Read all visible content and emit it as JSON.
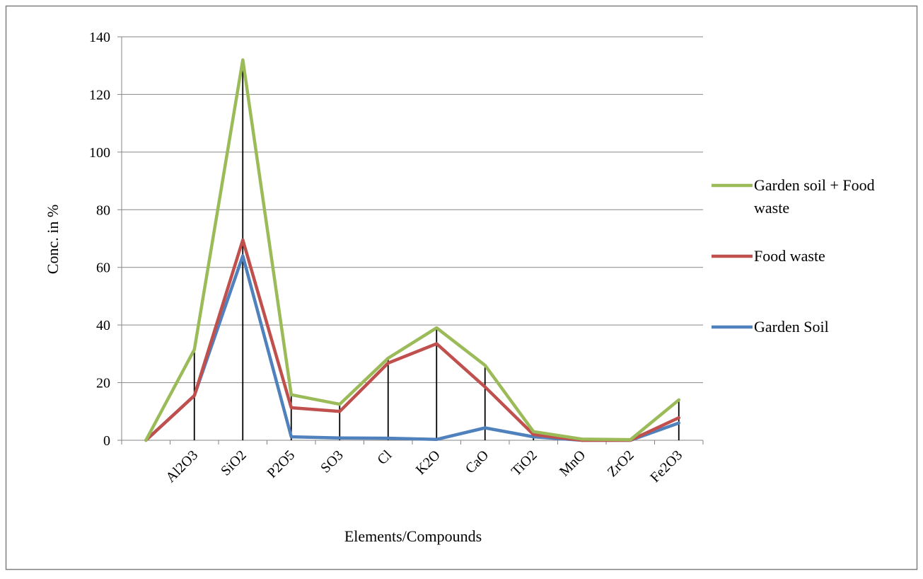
{
  "chart_data": {
    "type": "line",
    "categories": [
      "",
      "Al2O3",
      "SiO2",
      "P2O5",
      "SO3",
      "Cl",
      "K2O",
      "CaO",
      "TiO2",
      "MnO",
      "ZrO2",
      "Fe2O3"
    ],
    "series": [
      {
        "name": "Garden soil + Food waste",
        "values": [
          0,
          31.5,
          132,
          15.8,
          12.5,
          28.5,
          39,
          26,
          3,
          0.4,
          0.2,
          14
        ],
        "color": "#9bbb59"
      },
      {
        "name": "Food waste",
        "values": [
          0,
          15.5,
          69.5,
          11.3,
          10,
          26.8,
          33.5,
          18.5,
          2,
          0,
          0,
          7.8
        ],
        "color": "#c0504d"
      },
      {
        "name": "Garden Soil",
        "values": [
          0,
          15.5,
          64,
          1.2,
          0.8,
          0.7,
          0.3,
          4.3,
          1.2,
          0,
          0,
          6
        ],
        "color": "#4f81bd"
      }
    ],
    "xlabel": "Elements/Compounds",
    "ylabel": "Conc. in %",
    "ylim": [
      0,
      140
    ],
    "yticks": [
      "0",
      "20",
      "40",
      "60",
      "80",
      "100",
      "120",
      "140"
    ],
    "grid": true,
    "legend_position": "right",
    "drop_lines": true
  }
}
